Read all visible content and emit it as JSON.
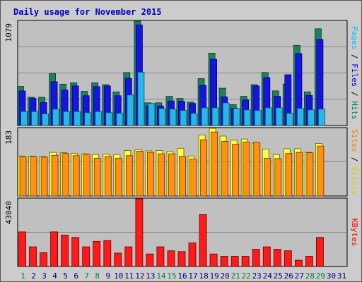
{
  "chart_data": {
    "type": "bar",
    "title": "Daily usage for November 2015",
    "categories": [
      "1",
      "2",
      "3",
      "4",
      "5",
      "6",
      "7",
      "8",
      "9",
      "10",
      "11",
      "12",
      "13",
      "14",
      "15",
      "16",
      "17",
      "18",
      "19",
      "20",
      "21",
      "22",
      "23",
      "24",
      "25",
      "26",
      "27",
      "28",
      "29",
      "30",
      "31"
    ],
    "weekend_days": [
      1,
      7,
      8,
      14,
      15,
      21,
      22,
      28,
      29
    ],
    "panels": [
      {
        "id": "hits",
        "max_label": "1079",
        "ymax": 1079,
        "side_labels": [
          {
            "text": "Pages",
            "color": "#00c0ff"
          },
          {
            "text": " / ",
            "color": "#000000"
          },
          {
            "text": "Files",
            "color": "#0000e0"
          },
          {
            "text": " / ",
            "color": "#000000"
          },
          {
            "text": "Hits",
            "color": "#008040"
          }
        ],
        "series": [
          {
            "name": "Hits",
            "color": "#1f7f5f",
            "values": [
              404,
              292,
              292,
              536,
              428,
              442,
              353,
              442,
              422,
              348,
              548,
              1079,
              235,
              235,
              302,
              280,
              242,
              485,
              748,
              386,
              216,
              302,
              422,
              548,
              358,
              428,
              829,
              348,
              1000
            ]
          },
          {
            "name": "Files",
            "color": "#1515dd",
            "values": [
              357,
              280,
              237,
              453,
              366,
              409,
              308,
              402,
              409,
              308,
              488,
              1040,
              202,
              202,
              254,
              249,
              228,
              415,
              684,
              296,
              177,
              264,
              409,
              495,
              302,
              525,
              744,
              310,
              890
            ]
          },
          {
            "name": "Pages",
            "color": "#29b6e8",
            "values": [
              144,
              144,
              120,
              169,
              144,
              144,
              133,
              144,
              133,
              126,
              315,
              551,
              228,
              175,
              169,
              155,
              126,
              183,
              183,
              233,
              175,
              161,
              155,
              183,
              183,
              126,
              177,
              161,
              169
            ]
          }
        ]
      },
      {
        "id": "visits",
        "max_label": "183",
        "ymax": 183,
        "side_labels": [
          {
            "text": "Sites",
            "color": "#ff8000"
          },
          {
            "text": " / ",
            "color": "#000000"
          },
          {
            "text": "Visits",
            "color": "#e0d000"
          }
        ],
        "series": [
          {
            "name": "Visits",
            "color": "#ffff40",
            "values": [
              108,
              108,
              107,
              118,
              117,
              115,
              114,
              112,
              113,
              112,
              123,
              125,
              122,
              123,
              120,
              129,
              108,
              165,
              183,
              162,
              151,
              154,
              143,
              127,
              112,
              128,
              128,
              118,
              142
            ]
          },
          {
            "name": "Sites",
            "color": "#ff9010",
            "values": [
              106,
              107,
              105,
              110,
              115,
              109,
              113,
              102,
              107,
              102,
              109,
              121,
              118,
              114,
              114,
              107,
              100,
              152,
              173,
              148,
              140,
              146,
              145,
              102,
              101,
              115,
              118,
              117,
              135
            ]
          }
        ]
      },
      {
        "id": "kbytes",
        "max_label": "43040",
        "ymax": 43040,
        "side_labels": [
          {
            "text": "KBytes",
            "color": "#ff0000"
          }
        ],
        "series": [
          {
            "name": "KBytes",
            "color": "#ff1a1a",
            "values": [
              22000,
              12500,
              8800,
              22000,
              20000,
              18500,
              12500,
              16000,
              16500,
              8500,
              12500,
              43040,
              8000,
              12500,
              10000,
              9500,
              15000,
              33000,
              8000,
              6500,
              6500,
              6500,
              11000,
              12500,
              11000,
              10000,
              4000,
              6500,
              18500
            ]
          }
        ]
      }
    ]
  }
}
